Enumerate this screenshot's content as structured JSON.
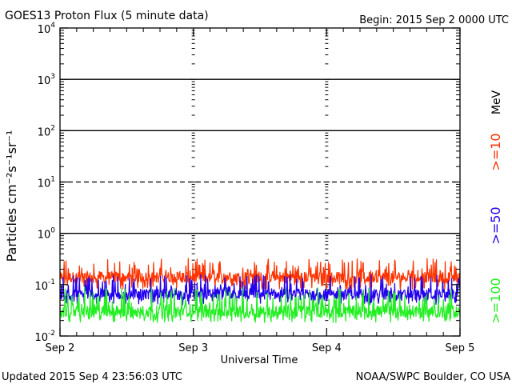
{
  "header": {
    "title": "GOES13 Proton Flux (5 minute data)",
    "begin": "Begin: 2015 Sep 2 0000 UTC"
  },
  "footer": {
    "updated": "Updated 2015 Sep  4 23:56:03 UTC",
    "credit": "NOAA/SWPC Boulder, CO USA"
  },
  "colors": {
    "gt10": "#ff3300",
    "gt50": "#2200ee",
    "gt100": "#22ee22",
    "axis": "#000000"
  },
  "chart_data": {
    "type": "line",
    "title": "GOES13 Proton Flux (5 minute data)",
    "xlabel": "Universal Time",
    "ylabel": "Particles cm⁻²s⁻¹sr⁻¹",
    "yscale": "log",
    "ylim": [
      0.01,
      10000
    ],
    "xlim": [
      0,
      3
    ],
    "x_ticks": [
      {
        "x": 0,
        "label": "Sep 2"
      },
      {
        "x": 1,
        "label": "Sep 3"
      },
      {
        "x": 2,
        "label": "Sep 4"
      },
      {
        "x": 3,
        "label": "Sep 5"
      }
    ],
    "y_ticks": [
      {
        "exp": -2,
        "base": "10",
        "sup": "-2"
      },
      {
        "exp": -1,
        "base": "10",
        "sup": "-1"
      },
      {
        "exp": 0,
        "base": "10",
        "sup": "0"
      },
      {
        "exp": 1,
        "base": "10",
        "sup": "1"
      },
      {
        "exp": 2,
        "base": "10",
        "sup": "2"
      },
      {
        "exp": 3,
        "base": "10",
        "sup": "3"
      },
      {
        "exp": 4,
        "base": "10",
        "sup": "4"
      }
    ],
    "threshold_lines": [
      {
        "value": 1000,
        "style": "solid"
      },
      {
        "value": 100,
        "style": "solid"
      },
      {
        "value": 10,
        "style": "dashed"
      },
      {
        "value": 1,
        "style": "solid"
      }
    ],
    "right_axis_labels": [
      ">=10",
      ">=50",
      ">=100",
      "MeV"
    ],
    "series": [
      {
        "name": ">=10",
        "color": "#ff3300",
        "typical": 0.14,
        "min": 0.08,
        "max": 0.33
      },
      {
        "name": ">=50",
        "color": "#2200ee",
        "typical": 0.065,
        "min": 0.04,
        "max": 0.16
      },
      {
        "name": ">=100",
        "color": "#22ee22",
        "typical": 0.03,
        "min": 0.018,
        "max": 0.09
      }
    ]
  }
}
